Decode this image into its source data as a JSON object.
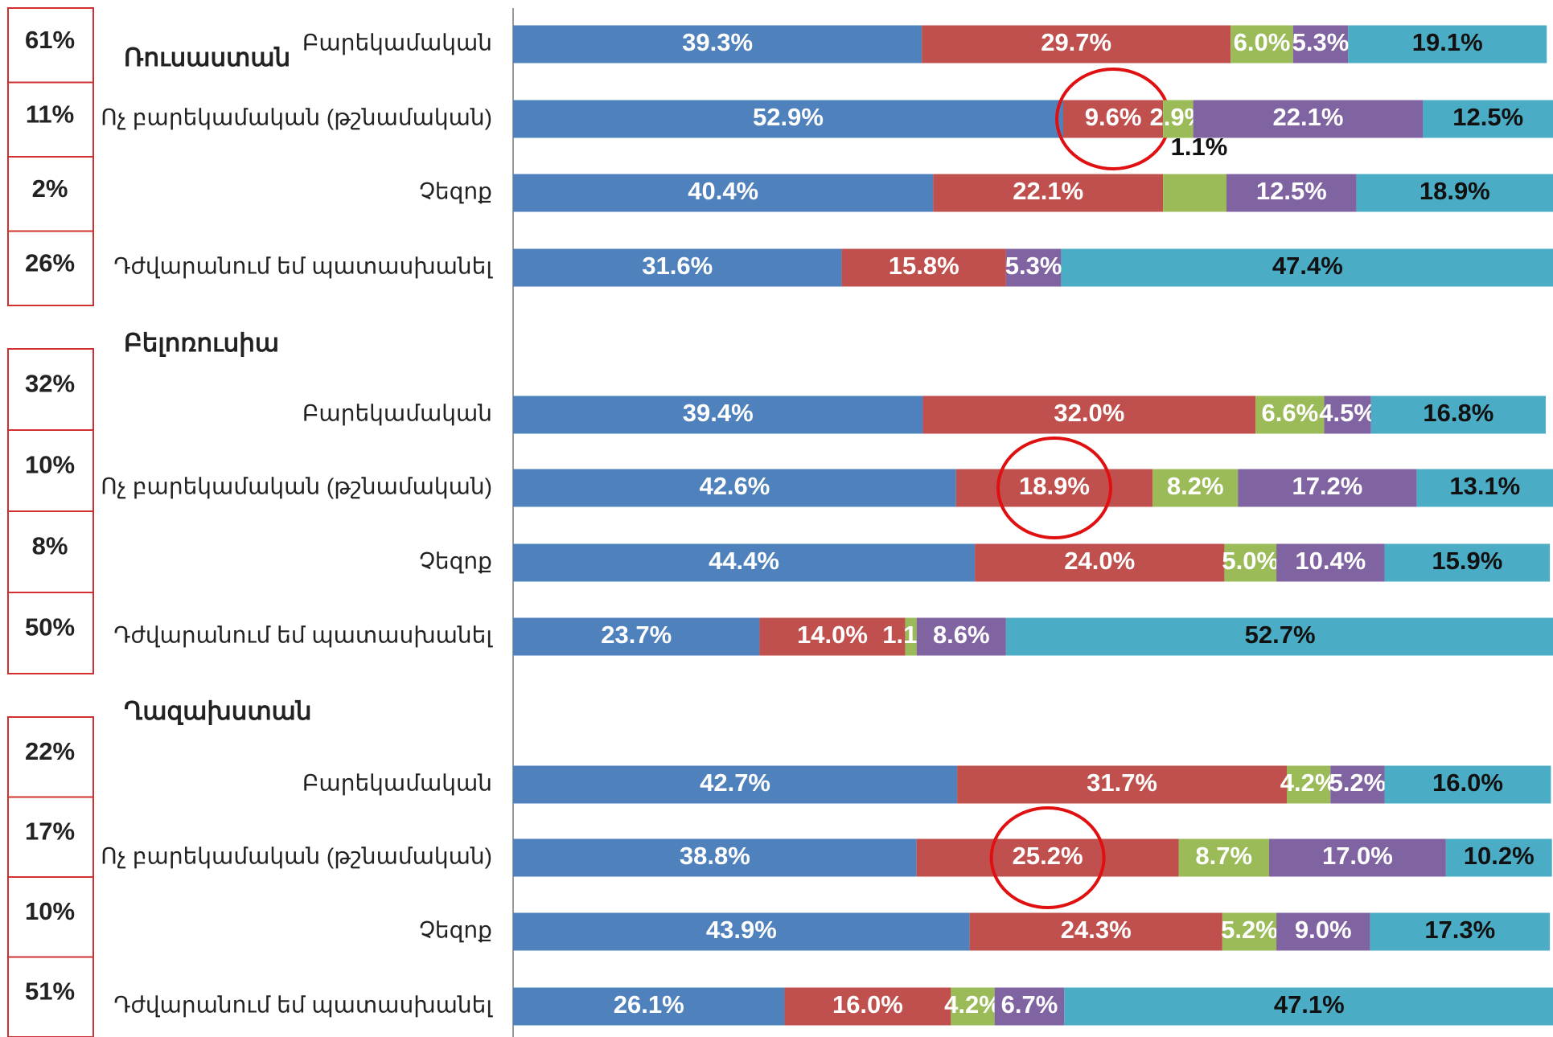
{
  "chart_data": {
    "type": "bar",
    "orientation": "horizontal",
    "stacked": true,
    "xlim": [
      0,
      100
    ],
    "groups": [
      {
        "name": "Ռուսաստան",
        "categories": [
          "Բարեկամական",
          "Ոչ բարեկամական (թշնամական)",
          "Չեզոք",
          "Դժվարանում եմ պատասխանել"
        ],
        "shares": {
          "values": [
            61,
            11,
            2,
            26
          ],
          "value_labels": [
            "61%",
            "11%",
            "2%",
            "26%"
          ]
        },
        "series": [
          {
            "color": "#4f81bd",
            "values": [
              39.3,
              52.9,
              40.4,
              31.6
            ],
            "value_labels": [
              "39.3%",
              "52.9%",
              "40.4%",
              "31.6%"
            ]
          },
          {
            "color": "#c0504d",
            "values": [
              29.7,
              9.6,
              22.1,
              15.8
            ],
            "value_labels": [
              "29.7%",
              "9.6%",
              "22.1%",
              "15.8%"
            ]
          },
          {
            "color": "#9bbb59",
            "values": [
              6.0,
              2.9,
              6.1,
              null
            ],
            "value_labels": [
              "6.0%",
              "2.9%",
              null,
              null
            ]
          },
          {
            "color": "#8064a2",
            "values": [
              5.3,
              22.1,
              12.5,
              5.3
            ],
            "value_labels": [
              "5.3%",
              "22.1%",
              "12.5%",
              "5.3%"
            ]
          },
          {
            "color": "#4bacc6",
            "values": [
              19.1,
              12.5,
              18.9,
              47.4
            ],
            "value_labels": [
              "19.1%",
              "12.5%",
              "18.9%",
              "47.4%"
            ]
          }
        ],
        "annotations": [
          "1.1%"
        ]
      },
      {
        "name": "Բելոռուսիա",
        "categories": [
          "Բարեկամական",
          "Ոչ բարեկամական (թշնամական)",
          "Չեզոք",
          "Դժվարանում եմ պատասխանել"
        ],
        "shares": {
          "values": [
            32,
            10,
            8,
            50
          ],
          "value_labels": [
            "32%",
            "10%",
            "8%",
            "50%"
          ]
        },
        "series": [
          {
            "color": "#4f81bd",
            "values": [
              39.4,
              42.6,
              44.4,
              23.7
            ],
            "value_labels": [
              "39.4%",
              "42.6%",
              "44.4%",
              "23.7%"
            ]
          },
          {
            "color": "#c0504d",
            "values": [
              32.0,
              18.9,
              24.0,
              14.0
            ],
            "value_labels": [
              "32.0%",
              "18.9%",
              "24.0%",
              "14.0%"
            ]
          },
          {
            "color": "#9bbb59",
            "values": [
              6.6,
              8.2,
              5.0,
              1.1
            ],
            "value_labels": [
              "6.6%",
              "8.2%",
              "5.0%",
              "1.1%"
            ]
          },
          {
            "color": "#8064a2",
            "values": [
              4.5,
              17.2,
              10.4,
              8.6
            ],
            "value_labels": [
              "4.5%",
              "17.2%",
              "10.4%",
              "8.6%"
            ]
          },
          {
            "color": "#4bacc6",
            "values": [
              16.8,
              13.1,
              15.9,
              52.7
            ],
            "value_labels": [
              "16.8%",
              "13.1%",
              "15.9%",
              "52.7%"
            ]
          }
        ]
      },
      {
        "name": "Ղազախստան",
        "categories": [
          "Բարեկամական",
          "Ոչ բարեկամական (թշնամական)",
          "Չեզոք",
          "Դժվարանում եմ պատասխանել"
        ],
        "shares": {
          "values": [
            22,
            17,
            10,
            51
          ],
          "value_labels": [
            "22%",
            "17%",
            "10%",
            "51%"
          ]
        },
        "series": [
          {
            "color": "#4f81bd",
            "values": [
              42.7,
              38.8,
              43.9,
              26.1
            ],
            "value_labels": [
              "42.7%",
              "38.8%",
              "43.9%",
              "26.1%"
            ]
          },
          {
            "color": "#c0504d",
            "values": [
              31.7,
              25.2,
              24.3,
              16.0
            ],
            "value_labels": [
              "31.7%",
              "25.2%",
              "24.3%",
              "16.0%"
            ]
          },
          {
            "color": "#9bbb59",
            "values": [
              4.2,
              8.7,
              5.2,
              4.2
            ],
            "value_labels": [
              "4.2%",
              "8.7%",
              "5.2%",
              "4.2%"
            ]
          },
          {
            "color": "#8064a2",
            "values": [
              5.2,
              17.0,
              9.0,
              6.7
            ],
            "value_labels": [
              "5.2%",
              "17.0%",
              "9.0%",
              "6.7%"
            ]
          },
          {
            "color": "#4bacc6",
            "values": [
              16.0,
              10.2,
              17.3,
              47.1
            ],
            "value_labels": [
              "16.0%",
              "10.2%",
              "17.3%",
              "47.1%"
            ]
          }
        ]
      }
    ]
  }
}
